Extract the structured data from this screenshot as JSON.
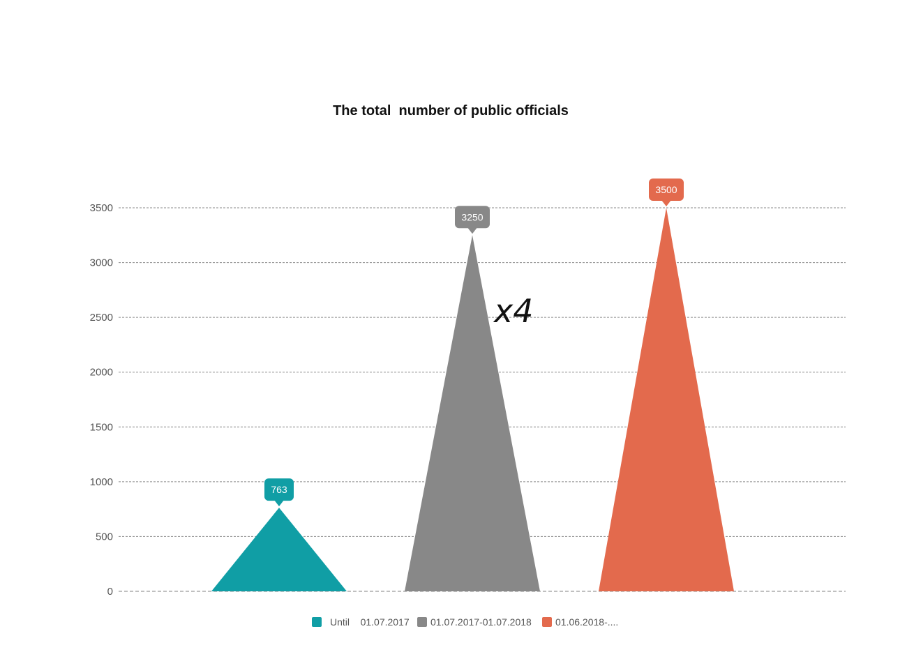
{
  "chart_data": {
    "type": "bar",
    "bar_shape": "triangle",
    "title": "The total  number of public officials",
    "categories": [
      "Until    01.07.2017",
      "01.07.2017-01.07.2018",
      "01.06.2018-...."
    ],
    "values": [
      763,
      3250,
      3500
    ],
    "colors": [
      "#109ea5",
      "#888888",
      "#e36a4d"
    ],
    "data_labels": [
      "763",
      "3250",
      "3500"
    ],
    "ylim": [
      0,
      3500
    ],
    "yticks": [
      0,
      500,
      1000,
      1500,
      2000,
      2500,
      3000,
      3500
    ],
    "ytick_labels": [
      "0",
      "500",
      "1000",
      "1500",
      "2000",
      "2500",
      "3000",
      "3500"
    ],
    "grid": true,
    "legend": {
      "placement": "bottom",
      "entries": [
        "Until    01.07.2017",
        "01.07.2017-01.07.2018",
        "01.06.2018-...."
      ]
    },
    "annotation": "x4"
  }
}
